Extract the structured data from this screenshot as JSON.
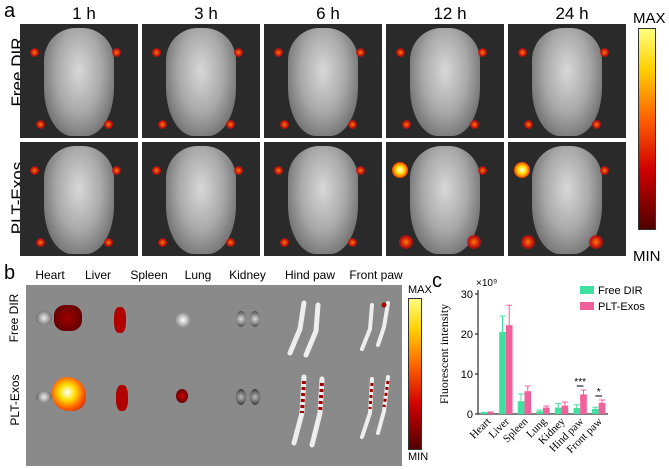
{
  "panels": {
    "a": "a",
    "b": "b",
    "c": "c"
  },
  "panel_a": {
    "times": [
      "1 h",
      "3 h",
      "6 h",
      "12 h",
      "24 h"
    ],
    "rows": [
      "Free DIR",
      "PLT-Exos"
    ],
    "colorbar": {
      "max": "MAX",
      "min": "MIN"
    }
  },
  "panel_b": {
    "organs": [
      "Heart",
      "Liver",
      "Spleen",
      "Lung",
      "Kidney",
      "Hind paw",
      "Front paw"
    ],
    "rows": [
      "Free DIR",
      "PLT-Exos"
    ],
    "colorbar": {
      "max": "MAX",
      "min": "MIN"
    }
  },
  "chart_data": {
    "type": "bar",
    "categories": [
      "Heart",
      "Liver",
      "Spleen",
      "Lung",
      "Kidney",
      "Hind paw",
      "Front paw"
    ],
    "series": [
      {
        "name": "Free DIR",
        "color": "#40e0a0",
        "values": [
          0.3,
          20.5,
          3.2,
          0.7,
          1.6,
          1.5,
          1.3
        ],
        "errors": [
          0.1,
          4.0,
          1.8,
          0.3,
          1.0,
          0.8,
          0.4
        ]
      },
      {
        "name": "PLT-Exos",
        "color": "#f0609a",
        "values": [
          0.4,
          22.2,
          5.7,
          1.6,
          2.1,
          4.9,
          2.8
        ],
        "errors": [
          0.1,
          5.0,
          1.3,
          0.4,
          0.9,
          1.1,
          0.7
        ]
      }
    ],
    "ylabel": "Fluorescent intensity",
    "y_multiplier": "×10⁹",
    "yticks": [
      0,
      10,
      20,
      30
    ],
    "ylim": [
      0,
      30
    ],
    "legend_position": "top-right",
    "significance": [
      {
        "category": "Hind paw",
        "label": "***"
      },
      {
        "category": "Front paw",
        "label": "*"
      }
    ]
  }
}
